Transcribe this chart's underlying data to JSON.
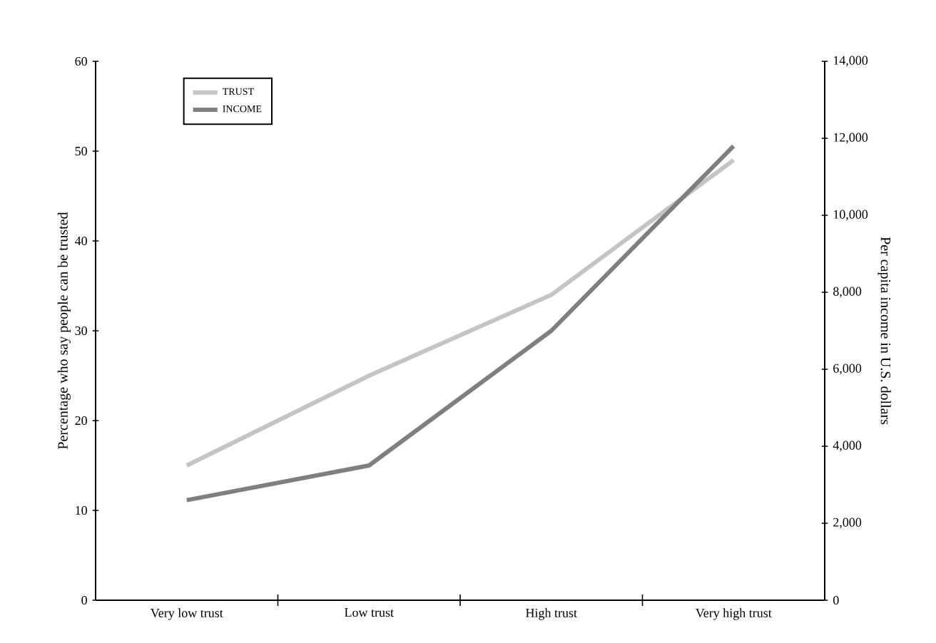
{
  "chart_data": {
    "type": "line",
    "ylabel": "Percentage who say people can be trusted",
    "y2label": "Per capita income in U.S. dollars",
    "categories": [
      "Very low trust",
      "Low trust",
      "High trust",
      "Very high trust"
    ],
    "ylim": [
      0,
      60
    ],
    "yticks": [
      0,
      10,
      20,
      30,
      40,
      50,
      60
    ],
    "y2lim": [
      0,
      14000
    ],
    "y2ticks": [
      0,
      {
        "value": 2000,
        "label": "2,000"
      },
      {
        "value": 4000,
        "label": "4,000"
      },
      {
        "value": 6000,
        "label": "6,000"
      },
      {
        "value": 8000,
        "label": "8,000"
      },
      {
        "value": 10000,
        "label": "10,000"
      },
      {
        "value": 12000,
        "label": "12,000"
      },
      {
        "value": 14000,
        "label": "14,000"
      }
    ],
    "series": [
      {
        "name": "TRUST",
        "color": "#c4c4c4",
        "values": [
          15,
          25,
          34,
          49
        ]
      },
      {
        "name": "INCOME",
        "color": "#7f7f7f",
        "axis": "y2",
        "values": [
          2600,
          3500,
          7000,
          11800
        ]
      }
    ],
    "legend": "top left",
    "grid": false,
    "marker": "none",
    "line_style": "solid"
  }
}
